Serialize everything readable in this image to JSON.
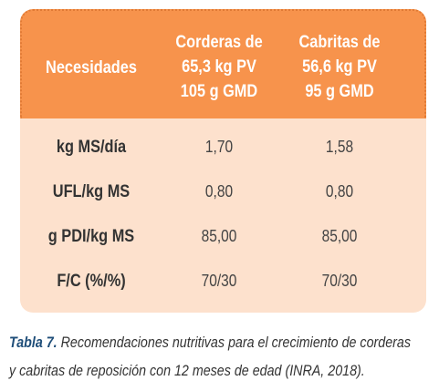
{
  "table": {
    "header": [
      [
        "Necesidades"
      ],
      [
        "Corderas de",
        "65,3 kg PV",
        "105 g GMD"
      ],
      [
        "Cabritas de",
        "56,6 kg PV",
        "95 g GMD"
      ]
    ],
    "rows": [
      [
        "kg MS/día",
        "1,70",
        "1,58"
      ],
      [
        "UFL/kg MS",
        "0,80",
        "0,80"
      ],
      [
        "g PDI/kg MS",
        "85,00",
        "85,00"
      ],
      [
        "F/C (%/%)",
        "70/30",
        "70/30"
      ]
    ]
  },
  "caption": {
    "label": "Tabla 7.",
    "lines": [
      "Recomendaciones nutritivas para el crecimiento de corderas",
      "y cabritas de reposición con 12 meses de edad (INRA, 2018)."
    ]
  }
}
